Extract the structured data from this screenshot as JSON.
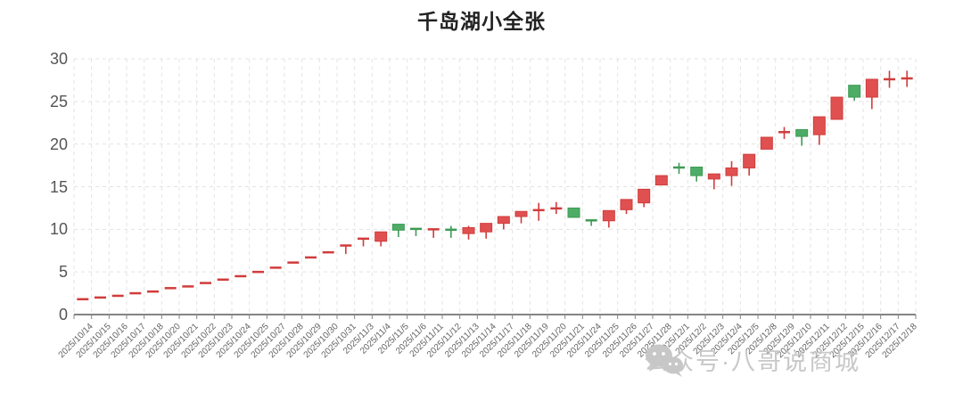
{
  "title": "千岛湖小全张",
  "watermark": {
    "text": "公众号·八哥说商城",
    "icon": "wechat-icon"
  },
  "chart_data": {
    "type": "candlestick",
    "title": "千岛湖小全张",
    "xlabel": "",
    "ylabel": "",
    "ylim": [
      0,
      30
    ],
    "y_ticks": [
      0,
      5,
      10,
      15,
      20,
      25,
      30
    ],
    "grid": true,
    "legend_position": "none",
    "up_color": "#e05050",
    "up_border_color": "#d13c3c",
    "down_color": "#4dac65",
    "down_border_color": "#3e9b55",
    "grid_color": "#e3e3e3",
    "axis_color": "#848484",
    "categories": [
      "2025/10/14",
      "2025/10/15",
      "2025/10/16",
      "2025/10/17",
      "2025/10/18",
      "2025/10/20",
      "2025/10/21",
      "2025/10/22",
      "2025/10/23",
      "2025/10/24",
      "2025/10/25",
      "2025/10/27",
      "2025/10/28",
      "2025/10/29",
      "2025/10/30",
      "2025/10/31",
      "2025/11/3",
      "2025/11/4",
      "2025/11/5",
      "2025/11/6",
      "2025/11/11",
      "2025/11/12",
      "2025/11/13",
      "2025/11/14",
      "2025/11/17",
      "2025/11/18",
      "2025/11/19",
      "2025/11/20",
      "2025/11/21",
      "2025/11/24",
      "2025/11/25",
      "2025/11/26",
      "2025/11/27",
      "2025/11/28",
      "2025/12/1",
      "2025/12/2",
      "2025/12/3",
      "2025/12/4",
      "2025/12/5",
      "2025/12/8",
      "2025/12/9",
      "2025/12/10",
      "2025/12/11",
      "2025/12/12",
      "2025/12/15",
      "2025/12/16",
      "2025/12/17",
      "2025/12/18"
    ],
    "series": [
      {
        "name": "daily-kline-open-close-low-high",
        "values": [
          [
            1.8,
            1.8,
            1.8,
            1.8
          ],
          [
            2.0,
            2.0,
            2.0,
            2.0
          ],
          [
            2.2,
            2.2,
            2.2,
            2.2
          ],
          [
            2.5,
            2.5,
            2.5,
            2.5
          ],
          [
            2.7,
            2.7,
            2.7,
            2.7
          ],
          [
            3.1,
            3.1,
            3.1,
            3.1
          ],
          [
            3.3,
            3.3,
            3.3,
            3.3
          ],
          [
            3.7,
            3.7,
            3.7,
            3.7
          ],
          [
            4.1,
            4.1,
            4.1,
            4.1
          ],
          [
            4.5,
            4.5,
            4.5,
            4.5
          ],
          [
            5.0,
            5.0,
            5.0,
            5.0
          ],
          [
            5.5,
            5.5,
            5.5,
            5.5
          ],
          [
            6.1,
            6.1,
            6.1,
            6.1
          ],
          [
            6.7,
            6.7,
            6.7,
            6.7
          ],
          [
            7.3,
            7.3,
            7.3,
            7.3
          ],
          [
            8.1,
            8.1,
            7.1,
            8.1
          ],
          [
            8.9,
            8.9,
            8.0,
            8.9
          ],
          [
            8.6,
            9.7,
            8.0,
            9.7
          ],
          [
            10.6,
            9.9,
            9.1,
            10.6
          ],
          [
            10.1,
            10.0,
            9.2,
            10.1
          ],
          [
            10.0,
            10.0,
            9.0,
            10.0
          ],
          [
            10.0,
            9.9,
            9.0,
            10.4
          ],
          [
            9.5,
            10.2,
            8.8,
            10.4
          ],
          [
            9.7,
            10.7,
            8.9,
            10.7
          ],
          [
            10.7,
            11.5,
            10.0,
            11.5
          ],
          [
            11.5,
            12.1,
            10.7,
            12.1
          ],
          [
            12.2,
            12.3,
            11.0,
            13.1
          ],
          [
            12.4,
            12.5,
            11.8,
            13.2
          ],
          [
            12.5,
            11.4,
            11.4,
            12.5
          ],
          [
            11.1,
            11.0,
            10.4,
            11.1
          ],
          [
            11.0,
            12.2,
            10.2,
            12.2
          ],
          [
            12.3,
            13.5,
            11.8,
            13.5
          ],
          [
            13.1,
            14.7,
            12.6,
            14.7
          ],
          [
            15.2,
            16.3,
            15.2,
            16.3
          ],
          [
            17.3,
            17.2,
            16.5,
            17.8
          ],
          [
            17.3,
            16.3,
            15.6,
            17.3
          ],
          [
            15.9,
            16.5,
            14.7,
            16.5
          ],
          [
            16.3,
            17.2,
            15.1,
            18.0
          ],
          [
            17.2,
            18.8,
            16.3,
            18.8
          ],
          [
            19.4,
            20.8,
            19.4,
            20.8
          ],
          [
            21.4,
            21.4,
            20.6,
            22.0
          ],
          [
            21.7,
            20.9,
            19.8,
            21.7
          ],
          [
            21.1,
            23.2,
            19.9,
            23.2
          ],
          [
            22.9,
            25.5,
            22.9,
            25.5
          ],
          [
            26.9,
            25.5,
            25.1,
            26.9
          ],
          [
            25.5,
            27.6,
            24.1,
            27.6
          ],
          [
            27.6,
            27.6,
            26.6,
            28.6
          ],
          [
            27.7,
            27.7,
            26.7,
            28.6
          ]
        ]
      }
    ]
  }
}
